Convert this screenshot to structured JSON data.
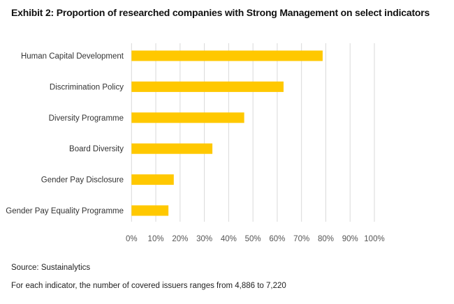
{
  "chart_data": {
    "type": "bar",
    "orientation": "horizontal",
    "title": "Exhibit 2: Proportion of researched companies with Strong Management on select indicators",
    "categories": [
      "Human Capital Development",
      "Discrimination Policy",
      "Diversity Programme",
      "Board Diversity",
      "Gender Pay Disclosure",
      "Gender Pay Equality Programme"
    ],
    "values": [
      78.7,
      62.6,
      46.4,
      33.3,
      17.4,
      15.2
    ],
    "xlim": [
      0,
      100
    ],
    "xticks": [
      "0%",
      "10%",
      "20%",
      "30%",
      "40%",
      "50%",
      "60%",
      "70%",
      "80%",
      "90%",
      "100%"
    ],
    "xlabel": "",
    "ylabel": "",
    "grid": true,
    "bar_color": "#FFC800",
    "grid_color": "#D9D9D9"
  },
  "source": "Source: Sustainalytics",
  "footnote": "For each indicator, the number of covered issuers ranges from 4,886 to 7,220"
}
